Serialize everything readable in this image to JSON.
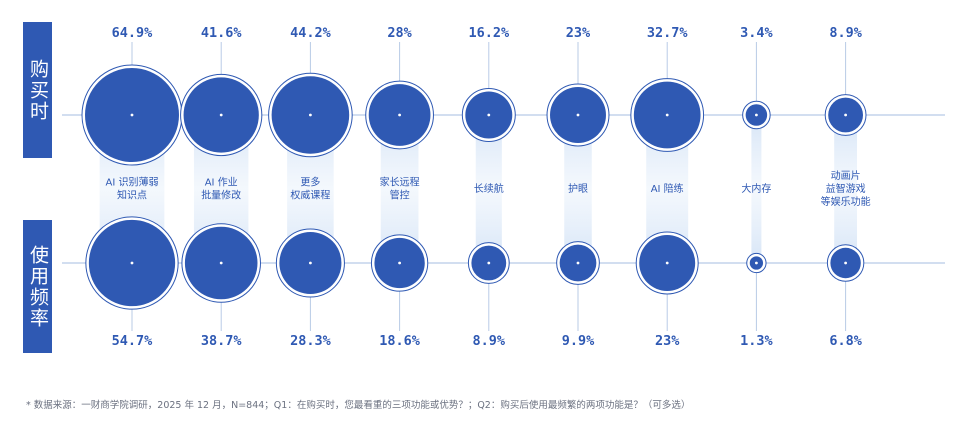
{
  "row_labels": {
    "purchase": "购买时",
    "usage": "使用频率"
  },
  "colors": {
    "bubble": "#2f59b3",
    "value_text": "#2f59b3",
    "axis_line": "#b8cbe6",
    "connector_glow": "#d9e6f7",
    "category_text": "#2f59b3"
  },
  "footnote": "* 数据来源：一财商学院调研，2025 年 12 月，N=844；Q1：在购买时，您最看重的三项功能或优势？；Q2：购买后使用最频繁的两项功能是？（可多选）",
  "chart_data": {
    "type": "bubble",
    "unit": "%",
    "categories": [
      {
        "label": [
          "AI 识别薄弱",
          "知识点"
        ],
        "purchase": 64.9,
        "purchase_label": "64.9%",
        "usage": 54.7,
        "usage_label": "54.7%"
      },
      {
        "label": [
          "AI 作业",
          "批量修改"
        ],
        "purchase": 41.6,
        "purchase_label": "41.6%",
        "usage": 38.7,
        "usage_label": "38.7%"
      },
      {
        "label": [
          "更多",
          "权威课程"
        ],
        "purchase": 44.2,
        "purchase_label": "44.2%",
        "usage": 28.3,
        "usage_label": "28.3%"
      },
      {
        "label": [
          "家长远程",
          "管控"
        ],
        "purchase": 28,
        "purchase_label": "28%",
        "usage": 18.6,
        "usage_label": "18.6%"
      },
      {
        "label": [
          "长续航"
        ],
        "purchase": 16.2,
        "purchase_label": "16.2%",
        "usage": 8.9,
        "usage_label": "8.9%"
      },
      {
        "label": [
          "护眼"
        ],
        "purchase": 23,
        "purchase_label": "23%",
        "usage": 9.9,
        "usage_label": "9.9%"
      },
      {
        "label": [
          "AI 陪练"
        ],
        "purchase": 32.7,
        "purchase_label": "32.7%",
        "usage": 23,
        "usage_label": "23%"
      },
      {
        "label": [
          "大内存"
        ],
        "purchase": 3.4,
        "purchase_label": "3.4%",
        "usage": 1.3,
        "usage_label": "1.3%"
      },
      {
        "label": [
          "动画片",
          "益智游戏",
          "等娱乐功能"
        ],
        "purchase": 8.9,
        "purchase_label": "8.9%",
        "usage": 6.8,
        "usage_label": "6.8%"
      }
    ]
  }
}
